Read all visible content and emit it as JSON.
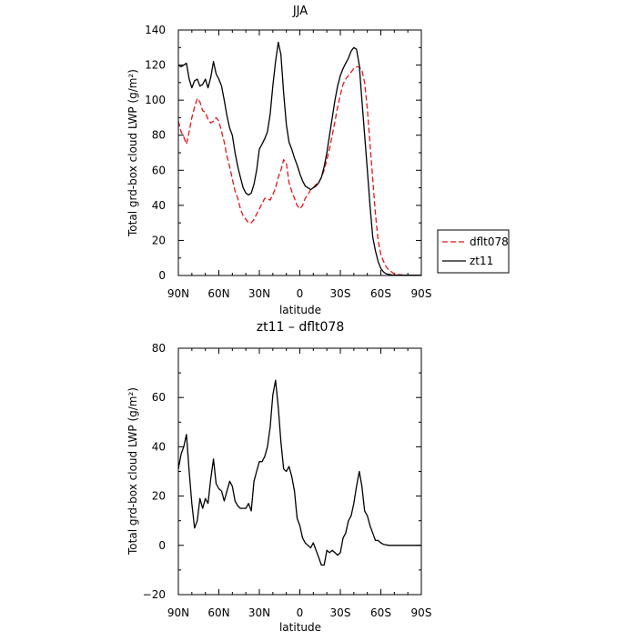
{
  "chart_data": [
    {
      "type": "line",
      "title": "JJA",
      "xlabel": "latitude",
      "ylabel": "Total grd-box cloud LWP (g/m²)",
      "xlim": [
        90,
        -90
      ],
      "ylim": [
        0,
        140
      ],
      "x_ticks": [
        90,
        60,
        30,
        0,
        -30,
        -60,
        -90
      ],
      "x_tick_labels": [
        "90N",
        "60N",
        "30N",
        "0",
        "30S",
        "60S",
        "90S"
      ],
      "y_ticks": [
        0,
        20,
        40,
        60,
        80,
        100,
        120,
        140
      ],
      "y_tick_labels": [
        "0",
        "20",
        "40",
        "60",
        "80",
        "100",
        "120",
        "140"
      ],
      "legend_position": "outside-right",
      "series": [
        {
          "name": "dflt078",
          "color": "#e8141c",
          "dash": "dashed",
          "x": [
            90,
            88,
            86,
            84,
            82,
            80,
            78,
            76,
            74,
            72,
            70,
            68,
            66,
            64,
            62,
            60,
            58,
            56,
            54,
            52,
            50,
            48,
            46,
            44,
            42,
            40,
            38,
            36,
            34,
            32,
            30,
            28,
            26,
            24,
            22,
            20,
            18,
            16,
            14,
            12,
            10,
            8,
            6,
            4,
            2,
            0,
            -2,
            -4,
            -6,
            -8,
            -10,
            -12,
            -14,
            -16,
            -18,
            -20,
            -22,
            -24,
            -26,
            -28,
            -30,
            -32,
            -34,
            -36,
            -38,
            -40,
            -42,
            -44,
            -46,
            -48,
            -50,
            -52,
            -54,
            -56,
            -58,
            -60,
            -62,
            -64,
            -66,
            -68,
            -70,
            -72,
            -74,
            -76,
            -78,
            -80,
            -82,
            -84,
            -86,
            -88,
            -90
          ],
          "y": [
            88,
            82,
            79,
            75,
            82,
            90,
            96,
            101,
            99,
            94,
            93,
            89,
            87,
            88,
            90,
            88,
            82,
            76,
            68,
            62,
            55,
            48,
            44,
            38,
            34,
            32,
            30,
            30,
            32,
            35,
            38,
            41,
            44,
            44,
            43,
            46,
            50,
            56,
            60,
            66,
            64,
            53,
            48,
            44,
            40,
            38,
            40,
            44,
            46,
            49,
            50,
            52,
            53,
            56,
            60,
            66,
            72,
            80,
            88,
            96,
            103,
            109,
            112,
            114,
            116,
            118,
            119,
            119,
            117,
            110,
            95,
            75,
            55,
            35,
            20,
            12,
            8,
            5,
            3,
            2,
            1,
            0.5,
            0.5,
            0.3,
            0.2,
            0.2,
            0.2,
            0.2,
            0.2,
            0.2,
            0.2
          ]
        },
        {
          "name": "zt11",
          "color": "#000000",
          "dash": "solid",
          "x": [
            90,
            88,
            86,
            84,
            82,
            80,
            78,
            76,
            74,
            72,
            70,
            68,
            66,
            64,
            62,
            60,
            58,
            56,
            54,
            52,
            50,
            48,
            46,
            44,
            42,
            40,
            38,
            36,
            34,
            32,
            30,
            28,
            26,
            24,
            22,
            20,
            18,
            16,
            14,
            12,
            10,
            8,
            6,
            4,
            2,
            0,
            -2,
            -4,
            -6,
            -8,
            -10,
            -12,
            -14,
            -16,
            -18,
            -20,
            -22,
            -24,
            -26,
            -28,
            -30,
            -32,
            -34,
            -36,
            -38,
            -40,
            -42,
            -44,
            -46,
            -48,
            -50,
            -52,
            -54,
            -56,
            -58,
            -60,
            -62,
            -64,
            -66,
            -68,
            -70,
            -72,
            -74,
            -76,
            -78,
            -80,
            -82,
            -84,
            -86,
            -88,
            -90
          ],
          "y": [
            120,
            119,
            120,
            121,
            112,
            107,
            111,
            112,
            108,
            109,
            112,
            107,
            113,
            122,
            115,
            112,
            108,
            100,
            91,
            84,
            80,
            70,
            62,
            56,
            50,
            47,
            46,
            47,
            52,
            60,
            72,
            75,
            78,
            82,
            92,
            108,
            122,
            133,
            126,
            104,
            86,
            76,
            72,
            67,
            63,
            58,
            54,
            51,
            50,
            49,
            50,
            51,
            53,
            56,
            62,
            70,
            80,
            90,
            100,
            108,
            114,
            118,
            121,
            124,
            128,
            130,
            129,
            120,
            100,
            80,
            60,
            40,
            22,
            14,
            8,
            4,
            2,
            1,
            0.6,
            0.3,
            0.2,
            0.2,
            0.2,
            0.2,
            0.2,
            0.2,
            0.2,
            0.2,
            0.2,
            0.2,
            0.2
          ]
        }
      ]
    },
    {
      "type": "line",
      "title": "zt11 – dflt078",
      "xlabel": "latitude",
      "ylabel": "Total grd-box cloud LWP (g/m²)",
      "xlim": [
        90,
        -90
      ],
      "ylim": [
        -20,
        80
      ],
      "x_ticks": [
        90,
        60,
        30,
        0,
        -30,
        -60,
        -90
      ],
      "x_tick_labels": [
        "90N",
        "60N",
        "30N",
        "0",
        "30S",
        "60S",
        "90S"
      ],
      "y_ticks": [
        -20,
        0,
        20,
        40,
        60,
        80
      ],
      "y_tick_labels": [
        "−20",
        "0",
        "20",
        "40",
        "60",
        "80"
      ],
      "series": [
        {
          "color": "#000000",
          "dash": "solid",
          "x": [
            90,
            88,
            86,
            84,
            82,
            80,
            78,
            76,
            74,
            72,
            70,
            68,
            66,
            64,
            62,
            60,
            58,
            56,
            54,
            52,
            50,
            48,
            46,
            44,
            42,
            40,
            38,
            36,
            34,
            32,
            30,
            28,
            26,
            24,
            22,
            20,
            18,
            16,
            14,
            12,
            10,
            8,
            6,
            4,
            2,
            0,
            -2,
            -4,
            -6,
            -8,
            -10,
            -12,
            -14,
            -16,
            -18,
            -20,
            -22,
            -24,
            -26,
            -28,
            -30,
            -32,
            -34,
            -36,
            -38,
            -40,
            -42,
            -44,
            -46,
            -48,
            -50,
            -52,
            -54,
            -56,
            -58,
            -60,
            -62,
            -64,
            -66,
            -68,
            -70,
            -72,
            -74,
            -76,
            -78,
            -80,
            -82,
            -84,
            -86,
            -88,
            -90
          ],
          "y": [
            31,
            37,
            40,
            45,
            30,
            17,
            7,
            10,
            19,
            15,
            19,
            17,
            27,
            35,
            25,
            23,
            22,
            18,
            22,
            26,
            24,
            18,
            16,
            15,
            15,
            15,
            17,
            14,
            26,
            30,
            34,
            34,
            36,
            40,
            48,
            61,
            67,
            56,
            42,
            31,
            30,
            32,
            28,
            22,
            11,
            8,
            3,
            1,
            0,
            -1,
            1,
            -2,
            -5,
            -8,
            -8,
            -2,
            -3,
            -2,
            -3,
            -4,
            -3,
            3,
            5,
            10,
            12,
            17,
            24,
            30,
            24,
            14,
            12,
            8,
            5,
            2,
            2,
            1,
            0.4,
            0.2,
            0,
            0,
            0,
            0,
            0,
            0,
            0,
            0,
            0,
            0,
            0,
            0,
            0
          ]
        }
      ]
    }
  ]
}
